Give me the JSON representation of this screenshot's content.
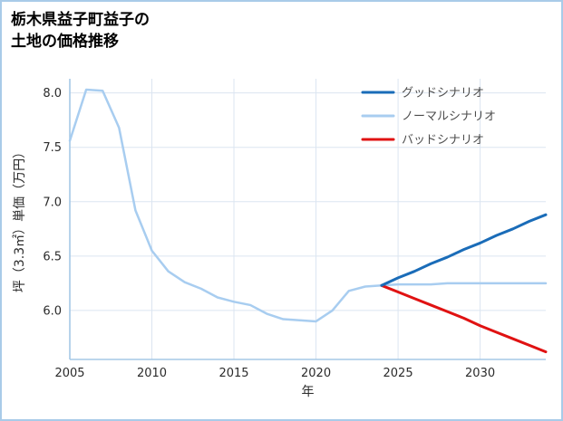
{
  "title": {
    "line1": "栃木県益子町益子の",
    "line2": "土地の価格推移"
  },
  "chart_data": {
    "type": "line",
    "title": "栃木県益子町益子の土地の価格推移",
    "xlabel": "年",
    "ylabel": "坪（3.3㎡）単価（万円）",
    "xlim": [
      2005,
      2034
    ],
    "ylim": [
      5.55,
      8.13
    ],
    "xticks": [
      2005,
      2010,
      2015,
      2020,
      2025,
      2030
    ],
    "yticks": [
      6.0,
      6.5,
      7.0,
      7.5,
      8.0
    ],
    "grid": true,
    "legend_position": "upper right",
    "colors": {
      "grid": "#dbe5f1",
      "axis": "#a5c8e6",
      "tick_text": "#2b2b2b",
      "legend_text": "#4d4d4d",
      "background": "#ffffff",
      "border": "#a9cbe8"
    },
    "series": [
      {
        "key": "good",
        "name": "グッドシナリオ",
        "color": "#1a6cb8",
        "zorder": 3,
        "width": 3,
        "x": [
          2024,
          2025,
          2026,
          2027,
          2028,
          2029,
          2030,
          2031,
          2032,
          2033,
          2034
        ],
        "y": [
          6.23,
          6.3,
          6.36,
          6.43,
          6.49,
          6.56,
          6.62,
          6.69,
          6.75,
          6.82,
          6.88
        ]
      },
      {
        "key": "normal",
        "name": "ノーマルシナリオ",
        "color": "#a8cdf0",
        "zorder": 1,
        "width": 2.5,
        "x": [
          2005,
          2006,
          2007,
          2008,
          2009,
          2010,
          2011,
          2012,
          2013,
          2014,
          2015,
          2016,
          2017,
          2018,
          2019,
          2020,
          2021,
          2022,
          2023,
          2024,
          2025,
          2026,
          2027,
          2028,
          2029,
          2030,
          2031,
          2032,
          2033,
          2034
        ],
        "y": [
          7.56,
          8.03,
          8.02,
          7.68,
          6.92,
          6.55,
          6.36,
          6.26,
          6.2,
          6.12,
          6.08,
          6.05,
          5.97,
          5.92,
          5.91,
          5.9,
          6.0,
          6.18,
          6.22,
          6.23,
          6.24,
          6.24,
          6.24,
          6.25,
          6.25,
          6.25,
          6.25,
          6.25,
          6.25,
          6.25
        ]
      },
      {
        "key": "bad",
        "name": "バッドシナリオ",
        "color": "#e01212",
        "zorder": 2,
        "width": 3,
        "x": [
          2024,
          2025,
          2026,
          2027,
          2028,
          2029,
          2030,
          2031,
          2032,
          2033,
          2034
        ],
        "y": [
          6.23,
          6.17,
          6.11,
          6.05,
          5.99,
          5.93,
          5.86,
          5.8,
          5.74,
          5.68,
          5.62
        ]
      }
    ]
  }
}
